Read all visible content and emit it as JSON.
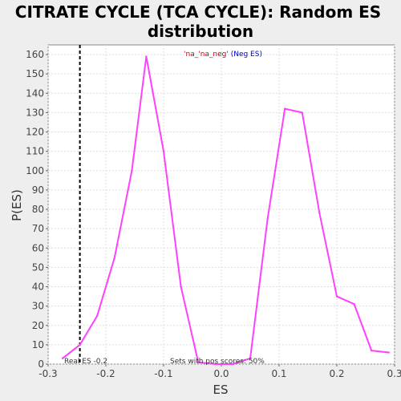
{
  "chart_data": {
    "type": "line",
    "title_lines": [
      "CITRATE CYCLE (TCA CYCLE): Random ES",
      "distribution"
    ],
    "xlabel": "ES",
    "ylabel": "P(ES)",
    "xlim": [
      -0.3,
      0.3
    ],
    "ylim": [
      0,
      165
    ],
    "xticks": [
      -0.3,
      -0.2,
      -0.1,
      0.0,
      0.1,
      0.2,
      0.3
    ],
    "xtick_labels": [
      "-0.3",
      "-0.2",
      "-0.1",
      "0.0",
      "0.1",
      "0.2",
      "0.3"
    ],
    "yticks": [
      0,
      10,
      20,
      30,
      40,
      50,
      60,
      70,
      80,
      90,
      100,
      110,
      120,
      130,
      140,
      150,
      160
    ],
    "grid": true,
    "series": [
      {
        "color": "#ff40ff",
        "x": [
          -0.275,
          -0.245,
          -0.215,
          -0.185,
          -0.155,
          -0.13,
          -0.1,
          -0.07,
          -0.04,
          -0.01,
          0.02,
          0.05,
          0.08,
          0.11,
          0.14,
          0.17,
          0.2,
          0.23,
          0.26,
          0.29
        ],
        "y": [
          3,
          10,
          25,
          55,
          100,
          159,
          110,
          40,
          1,
          0,
          0,
          3,
          75,
          132,
          130,
          78,
          35,
          31,
          7,
          6
        ]
      }
    ],
    "real_es": -0.245,
    "legend": {
      "prefix": "'na_",
      "middle": "'na_neg'",
      "suffix": " (Neg ES)",
      "placement": "top-center"
    },
    "annotations": {
      "real_es_text": "Real ES -0.2",
      "pos_scores_text": "Sets with pos scores: 50%"
    }
  }
}
